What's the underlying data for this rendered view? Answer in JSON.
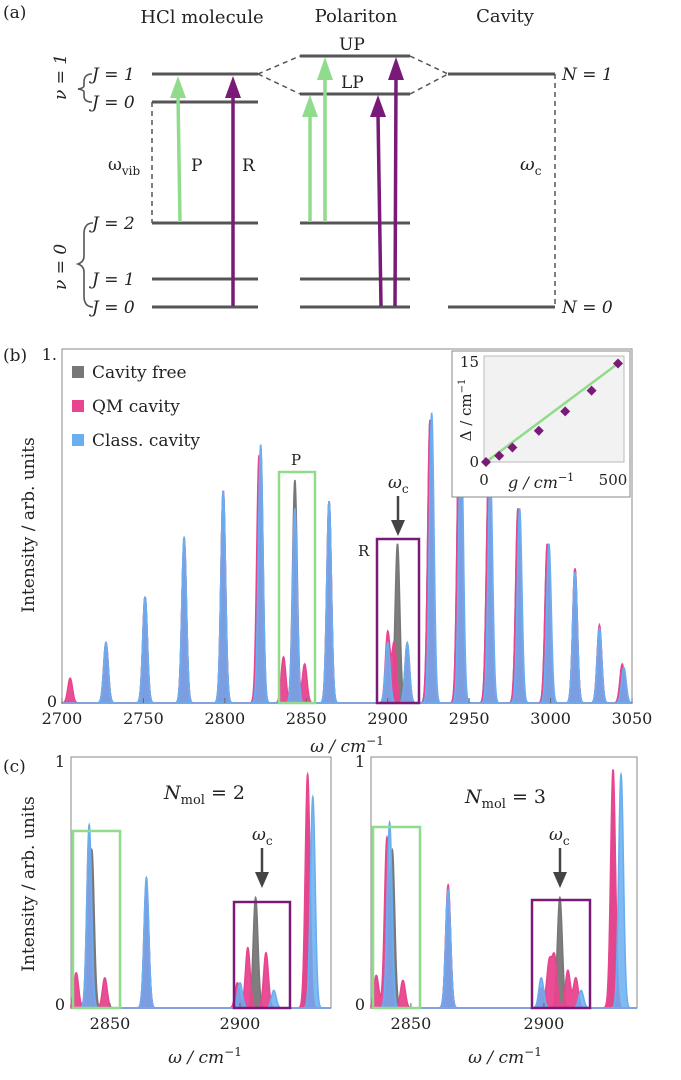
{
  "figure": {
    "panel_a": {
      "label": "(a)",
      "col_molecule": "HCl molecule",
      "col_polariton": "Polariton",
      "col_cavity": "Cavity",
      "v1_label": "ν = 1",
      "v0_label": "ν = 0",
      "j1": "J = 1",
      "j0_upper": "J = 0",
      "j2": "J = 2",
      "j1_lower": "J = 1",
      "j0_lower": "J = 0",
      "omega_vib": "ω",
      "omega_vib_sub": "vib",
      "p_label": "P",
      "r_label": "R",
      "up_label": "UP",
      "lp_label": "LP",
      "omega_c": "ω",
      "omega_c_sub": "c",
      "n1": "N = 1",
      "n0": "N = 0",
      "colors": {
        "p_branch": "#90dc8c",
        "r_branch": "#7a1a78",
        "level": "#555555"
      }
    },
    "panel_b": {
      "label": "(b)",
      "marker_p": "P",
      "marker_r": "R",
      "omega_c": "ω",
      "omega_c_sub": "c",
      "inset": {
        "ylabel": "Δ / cm",
        "ylabel_sup": "−1",
        "xlabel": "g / cm",
        "xlabel_sup": "−1",
        "xticks": [
          "0",
          "500"
        ],
        "yticks": [
          "0",
          "15"
        ],
        "points": [
          [
            0,
            0
          ],
          [
            50,
            0.9
          ],
          [
            100,
            2.1
          ],
          [
            200,
            4.5
          ],
          [
            300,
            7.3
          ],
          [
            400,
            10.3
          ],
          [
            500,
            14.2
          ]
        ]
      }
    },
    "panel_c": {
      "label": "(c)",
      "left_title": "N",
      "left_title_sub": "mol",
      "left_title_val": " = 2",
      "right_title": "N",
      "right_title_sub": "mol",
      "right_title_val": " = 3",
      "omega_c": "ω",
      "omega_c_sub": "c"
    }
  },
  "chart_data": [
    {
      "type": "line",
      "title": "",
      "xlabel": "ω / cm−1",
      "ylabel": "Intensity / arb. units",
      "xlim": [
        2700,
        3050
      ],
      "ylim": [
        0,
        1
      ],
      "xticks": [
        "2700",
        "2750",
        "2800",
        "2850",
        "2900",
        "2950",
        "3000",
        "3050"
      ],
      "yticks": [
        "0",
        "1."
      ],
      "legend": {
        "placement": "top-left",
        "entries": [
          "Cavity free",
          "QM cavity",
          "Class. cavity"
        ]
      },
      "colors": {
        "Cavity free": "#777777",
        "QM cavity": "#e8458f",
        "Class. cavity": "#6aaef0"
      },
      "series": [
        {
          "name": "Cavity free",
          "peaks": [
            [
              2727,
              0.17
            ],
            [
              2751,
              0.3
            ],
            [
              2775,
              0.46
            ],
            [
              2799,
              0.6
            ],
            [
              2822,
              0.72
            ],
            [
              2843,
              0.63
            ],
            [
              2864,
              0.57
            ],
            [
              2906,
              0.45
            ],
            [
              2926,
              0.8
            ],
            [
              2944,
              0.8
            ],
            [
              2962,
              0.65
            ],
            [
              2980,
              0.55
            ],
            [
              2998,
              0.45
            ],
            [
              3015,
              0.38
            ],
            [
              3030,
              0.21
            ],
            [
              3044,
              0.1
            ]
          ]
        },
        {
          "name": "QM cavity",
          "peaks": [
            [
              2705,
              0.07
            ],
            [
              2727,
              0.17
            ],
            [
              2751,
              0.3
            ],
            [
              2775,
              0.46
            ],
            [
              2799,
              0.6
            ],
            [
              2821,
              0.7
            ],
            [
              2836,
              0.13
            ],
            [
              2843,
              0.55
            ],
            [
              2849,
              0.11
            ],
            [
              2864,
              0.57
            ],
            [
              2900,
              0.2
            ],
            [
              2904,
              0.17
            ],
            [
              2912,
              0.17
            ],
            [
              2926,
              0.8
            ],
            [
              2944,
              0.8
            ],
            [
              2962,
              0.65
            ],
            [
              2980,
              0.55
            ],
            [
              2998,
              0.45
            ],
            [
              3015,
              0.38
            ],
            [
              3030,
              0.22
            ],
            [
              3044,
              0.11
            ]
          ]
        },
        {
          "name": "Class. cavity",
          "peaks": [
            [
              2727,
              0.17
            ],
            [
              2751,
              0.3
            ],
            [
              2775,
              0.47
            ],
            [
              2799,
              0.6
            ],
            [
              2822,
              0.73
            ],
            [
              2843,
              0.55
            ],
            [
              2864,
              0.57
            ],
            [
              2900,
              0.17
            ],
            [
              2912,
              0.17
            ],
            [
              2927,
              0.82
            ],
            [
              2945,
              0.8
            ],
            [
              2963,
              0.66
            ],
            [
              2981,
              0.55
            ],
            [
              2999,
              0.45
            ],
            [
              3015,
              0.37
            ],
            [
              3030,
              0.21
            ],
            [
              3045,
              0.1
            ]
          ]
        }
      ]
    },
    {
      "type": "line",
      "title": "N mol = 2",
      "xlabel": "ω / cm−1",
      "ylabel": "Intensity / arb. units",
      "xlim": [
        2835,
        2935
      ],
      "ylim": [
        0,
        1
      ],
      "xticks": [
        "2850",
        "2900"
      ],
      "yticks": [
        "0",
        "1"
      ],
      "series": [
        {
          "name": "Cavity free",
          "peaks": [
            [
              2843,
              0.63
            ],
            [
              2864,
              0.48
            ],
            [
              2906,
              0.44
            ],
            [
              2926,
              0.78
            ]
          ]
        },
        {
          "name": "QM cavity",
          "peaks": [
            [
              2837,
              0.14
            ],
            [
              2842,
              0.7
            ],
            [
              2848,
              0.12
            ],
            [
              2864,
              0.5
            ],
            [
              2899,
              0.1
            ],
            [
              2903,
              0.24
            ],
            [
              2910,
              0.22
            ],
            [
              2926,
              0.93
            ]
          ]
        },
        {
          "name": "Class. cavity",
          "peaks": [
            [
              2842,
              0.73
            ],
            [
              2864,
              0.52
            ],
            [
              2900,
              0.1
            ],
            [
              2913,
              0.07
            ],
            [
              2928,
              0.84
            ]
          ]
        }
      ]
    },
    {
      "type": "line",
      "title": "N mol = 3",
      "xlabel": "ω / cm−1",
      "ylabel": "",
      "xlim": [
        2835,
        2935
      ],
      "ylim": [
        0,
        1
      ],
      "xticks": [
        "2850",
        "2900"
      ],
      "yticks": [
        "0",
        "1"
      ],
      "series": [
        {
          "name": "Cavity free",
          "peaks": [
            [
              2843,
              0.63
            ],
            [
              2864,
              0.48
            ],
            [
              2906,
              0.44
            ],
            [
              2926,
              0.78
            ]
          ]
        },
        {
          "name": "QM cavity",
          "peaks": [
            [
              2837,
              0.13
            ],
            [
              2841,
              0.68
            ],
            [
              2847,
              0.11
            ],
            [
              2864,
              0.49
            ],
            [
              2899,
              0.08
            ],
            [
              2902,
              0.18
            ],
            [
              2904,
              0.2
            ],
            [
              2909,
              0.15
            ],
            [
              2912,
              0.12
            ],
            [
              2926,
              0.95
            ]
          ]
        },
        {
          "name": "Class. cavity",
          "peaks": [
            [
              2842,
              0.74
            ],
            [
              2864,
              0.47
            ],
            [
              2899,
              0.12
            ],
            [
              2914,
              0.07
            ],
            [
              2929,
              0.93
            ]
          ]
        }
      ]
    }
  ]
}
